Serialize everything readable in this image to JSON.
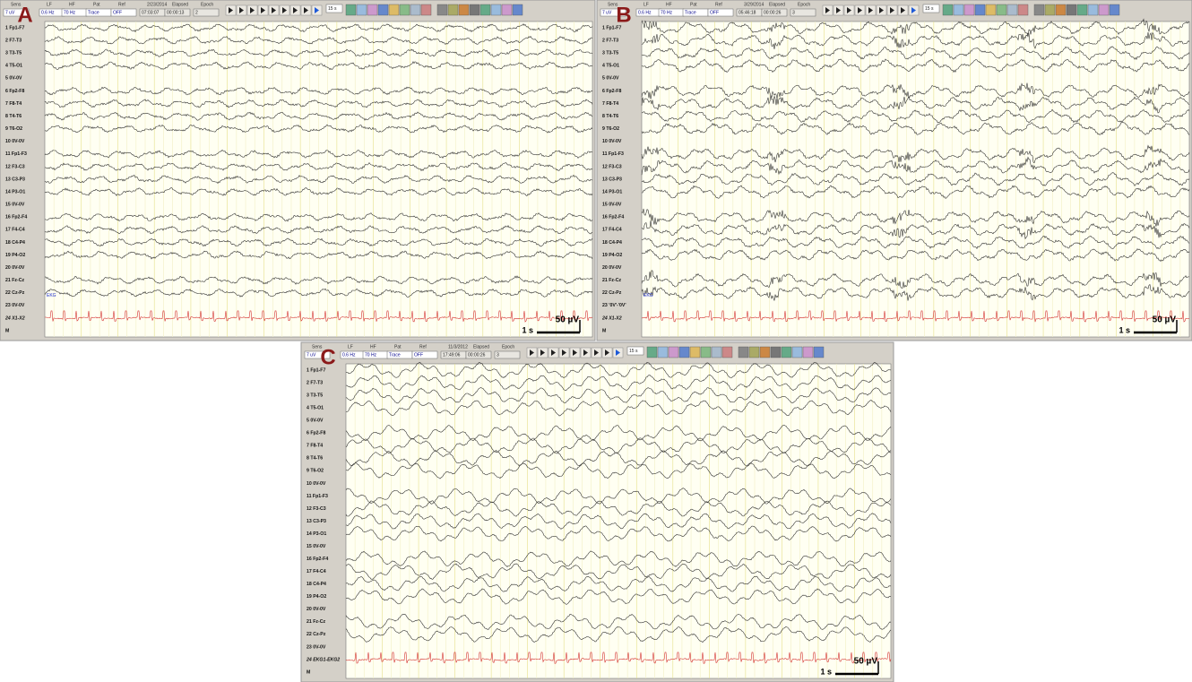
{
  "panels": [
    {
      "label": "A",
      "toolbar": {
        "headers": [
          "Sens",
          "LF",
          "HF",
          "Pat",
          "Ref",
          "2/23/2014",
          "Elapsed",
          "Epoch"
        ],
        "values": [
          "7 uV",
          "0.6 Hz",
          "70 Hz",
          "Trace",
          "OFF",
          "07:03:07",
          "00:00:13",
          "2"
        ],
        "speed": "15 s"
      },
      "channels": [
        "1 Fp1-F7",
        "2 F7-T3",
        "3 T3-T5",
        "4 T5-O1",
        "5 0V-0V",
        "6 Fp2-F8",
        "7 F8-T4",
        "8 T4-T6",
        "9 T6-O2",
        "10 0V-0V",
        "11 Fp1-F3",
        "12 F3-C3",
        "13 C3-P3",
        "14 P3-O1",
        "15 0V-0V",
        "16 Fp2-F4",
        "17 F4-C4",
        "18 C4-P4",
        "19 P4-O2",
        "20 0V-0V",
        "21 Fz-Cz",
        "22 Cz-Pz",
        "23 0V-0V",
        "24 X1-X2",
        "M"
      ],
      "ekg_label": "EKG",
      "time_scale": "1 s",
      "amp_scale": "50 µV"
    },
    {
      "label": "B",
      "toolbar": {
        "headers": [
          "Sens",
          "LF",
          "HF",
          "Pat",
          "Ref",
          "3/29/2014",
          "Elapsed",
          "Epoch"
        ],
        "values": [
          "7 uV",
          "0.6 Hz",
          "70 Hz",
          "Trace",
          "OFF",
          "05:46:18",
          "00:00:26",
          "3"
        ],
        "speed": "15 s"
      },
      "channels": [
        "1 Fp1-F7",
        "2 F7-T3",
        "3 T3-T5",
        "4 T5-O1",
        "5 0V-0V",
        "6 Fp2-F8",
        "7 F8-T4",
        "8 T4-T6",
        "9 T6-O2",
        "10 0V-0V",
        "11 Fp1-F3",
        "12 F3-C3",
        "13 C3-P3",
        "14 P3-O1",
        "15 0V-0V",
        "16 Fp2-F4",
        "17 F4-C4",
        "18 C4-P4",
        "19 P4-O2",
        "20 0V-0V",
        "21 Fz-Cz",
        "22 Cz-Pz",
        "23 '0V'-'0V'",
        "24 X1-X2",
        "M"
      ],
      "ekg_label": "EKG",
      "time_scale": "1 s",
      "amp_scale": "50 µV"
    },
    {
      "label": "C",
      "toolbar": {
        "headers": [
          "Sens",
          "LF",
          "HF",
          "Pat",
          "Ref",
          "11/3/2012",
          "Elapsed",
          "Epoch"
        ],
        "values": [
          "7 uV",
          "0.6 Hz",
          "70 Hz",
          "Trace",
          "OFF",
          "17:49:06",
          "00:00:26",
          "3"
        ],
        "speed": "15 s"
      },
      "channels": [
        "1 Fp1-F7",
        "2 F7-T3",
        "3 T3-T5",
        "4 T5-O1",
        "5 0V-0V",
        "6 Fp2-F8",
        "7 F8-T4",
        "8 T4-T6",
        "9 T6-O2",
        "10 0V-0V",
        "11 Fp1-F3",
        "12 F3-C3",
        "13 C3-P3",
        "14 P3-O1",
        "15 0V-0V",
        "16 Fp2-F4",
        "17 F4-C4",
        "18 C4-P4",
        "19 P4-O2",
        "20 0V-0V",
        "21 Fz-Cz",
        "22 Cz-Pz",
        "23 0V-0V",
        "24 EKG1-EKG2",
        "M"
      ],
      "time_scale": "1 s",
      "amp_scale": "50 µV"
    }
  ]
}
